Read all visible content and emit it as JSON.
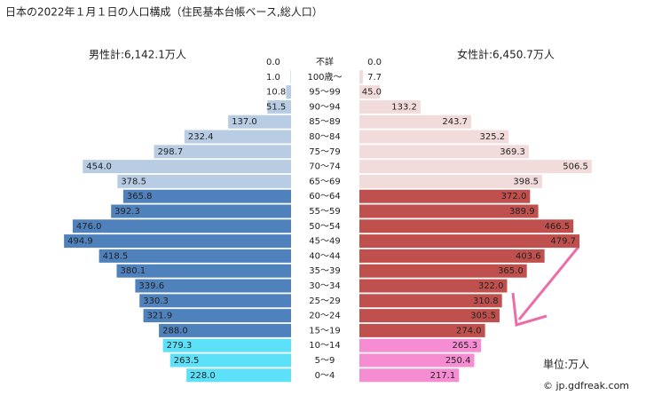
{
  "chart_data": {
    "type": "pyramid",
    "title": "日本の2022年１月１日の人口構成（住民基本台帳ベース,総人口）",
    "categories": [
      "不詳",
      "100歳～",
      "95～99",
      "90～94",
      "85～89",
      "80～84",
      "75～79",
      "70～74",
      "65～69",
      "60～64",
      "55～59",
      "50～54",
      "45～49",
      "40～44",
      "35～39",
      "30～34",
      "25～29",
      "20～24",
      "15～19",
      "10～14",
      "5～9",
      "0～4"
    ],
    "series": [
      {
        "name": "男性計:6,142.1万人",
        "values": [
          0.0,
          1.0,
          10.8,
          51.5,
          137.0,
          232.4,
          298.7,
          454.0,
          378.5,
          365.8,
          392.3,
          476.0,
          494.9,
          418.5,
          380.1,
          339.6,
          330.3,
          321.9,
          288.0,
          279.3,
          263.5,
          228.0
        ],
        "value_labels": [
          "0.0",
          "1.0",
          "10.8",
          "51.5",
          "137.0",
          "232.4",
          "298.7",
          "454.0",
          "378.5",
          "365.8",
          "392.3",
          "476.0",
          "494.9",
          "418.5",
          "380.1",
          "339.6",
          "330.3",
          "321.9",
          "288.0",
          "279.3",
          "263.5",
          "228.0"
        ],
        "colors": [
          "#b8cce4",
          "#b8cce4",
          "#b8cce4",
          "#b8cce4",
          "#b8cce4",
          "#b8cce4",
          "#b8cce4",
          "#b8cce4",
          "#b8cce4",
          "#4f81bd",
          "#4f81bd",
          "#4f81bd",
          "#4f81bd",
          "#4f81bd",
          "#4f81bd",
          "#4f81bd",
          "#4f81bd",
          "#4f81bd",
          "#4f81bd",
          "#5ce1f8",
          "#5ce1f8",
          "#5ce1f8"
        ]
      },
      {
        "name": "女性計:6,450.7万人",
        "values": [
          0.0,
          7.7,
          45.0,
          133.2,
          243.7,
          325.2,
          369.3,
          506.5,
          398.5,
          372.0,
          389.9,
          466.5,
          479.7,
          403.6,
          365.0,
          322.0,
          310.8,
          305.5,
          274.0,
          265.3,
          250.4,
          217.1
        ],
        "value_labels": [
          "0.0",
          "7.7",
          "45.0",
          "133.2",
          "243.7",
          "325.2",
          "369.3",
          "506.5",
          "398.5",
          "372.0",
          "389.9",
          "466.5",
          "479.7",
          "403.6",
          "365.0",
          "322.0",
          "310.8",
          "305.5",
          "274.0",
          "265.3",
          "250.4",
          "217.1"
        ],
        "colors": [
          "#f2dcdb",
          "#f2dcdb",
          "#f2dcdb",
          "#f2dcdb",
          "#f2dcdb",
          "#f2dcdb",
          "#f2dcdb",
          "#f2dcdb",
          "#f2dcdb",
          "#c0504d",
          "#c0504d",
          "#c0504d",
          "#c0504d",
          "#c0504d",
          "#c0504d",
          "#c0504d",
          "#c0504d",
          "#c0504d",
          "#c0504d",
          "#f68cd2",
          "#f68cd2",
          "#f68cd2"
        ]
      }
    ],
    "unit_note": "単位:万人",
    "source": "© jp.gdfreak.com"
  }
}
